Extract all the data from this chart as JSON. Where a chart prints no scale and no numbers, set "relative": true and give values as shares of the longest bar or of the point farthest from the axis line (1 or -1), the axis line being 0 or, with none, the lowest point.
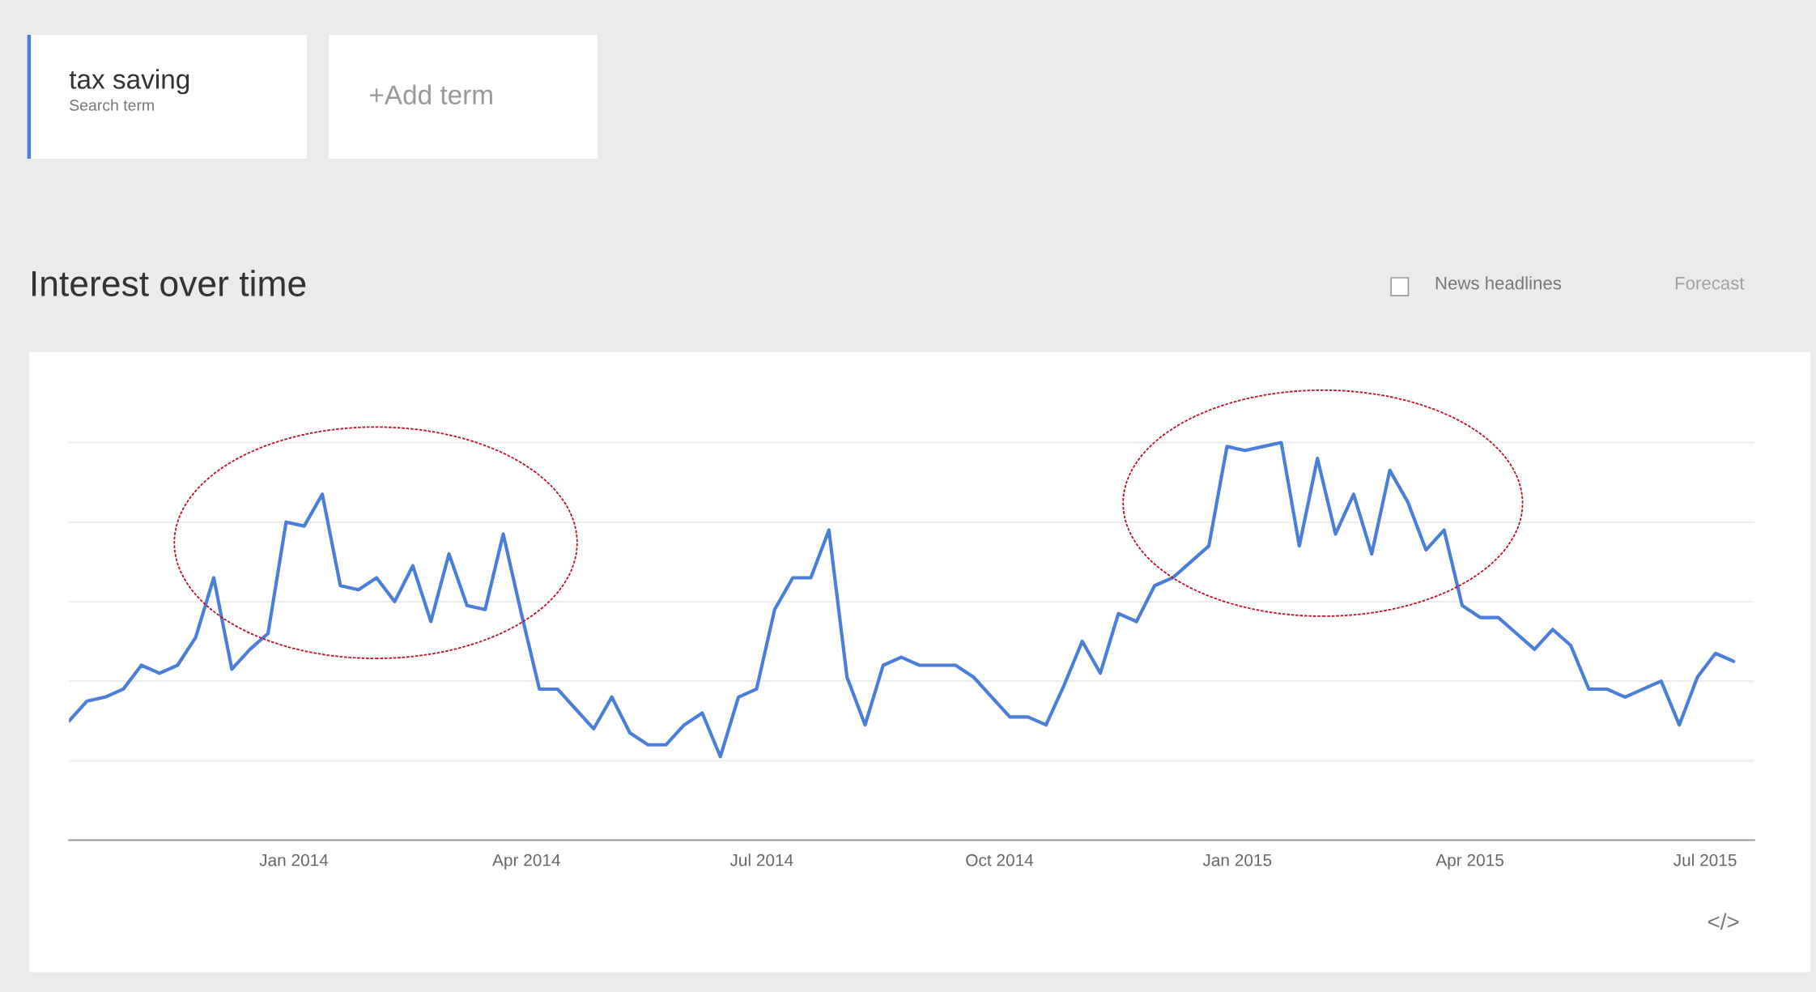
{
  "chart_data": {
    "type": "line",
    "title": "Interest over time",
    "relative": true,
    "grid": "y",
    "legend": "top left",
    "legend_title": "Search term",
    "annotations": [
      "+Add term",
      "News headlines",
      "Forecast",
      "</>"
    ],
    "xlim": [
      "2013-10-06",
      "2015-07-20"
    ],
    "xticks": [
      {
        "value": "2014-01-01",
        "label": "Jan 2014"
      },
      {
        "value": "2014-04-01",
        "label": "Apr 2014"
      },
      {
        "value": "2014-07-01",
        "label": "Jul 2014"
      },
      {
        "value": "2014-10-01",
        "label": "Oct 2014"
      },
      {
        "value": "2015-01-01",
        "label": "Jan 2015"
      },
      {
        "value": "2015-04-01",
        "label": "Apr 2015"
      },
      {
        "value": "2015-07-01",
        "label": "Jul 2015"
      }
    ],
    "x": [
      "2013-10-06",
      "2013-10-13",
      "2013-10-20",
      "2013-10-27",
      "2013-11-03",
      "2013-11-10",
      "2013-11-17",
      "2013-11-24",
      "2013-12-01",
      "2013-12-08",
      "2013-12-15",
      "2013-12-22",
      "2013-12-29",
      "2014-01-05",
      "2014-01-12",
      "2014-01-19",
      "2014-01-26",
      "2014-02-02",
      "2014-02-09",
      "2014-02-16",
      "2014-02-23",
      "2014-03-02",
      "2014-03-09",
      "2014-03-16",
      "2014-03-23",
      "2014-03-30",
      "2014-04-06",
      "2014-04-13",
      "2014-04-20",
      "2014-04-27",
      "2014-05-04",
      "2014-05-11",
      "2014-05-18",
      "2014-05-25",
      "2014-06-01",
      "2014-06-08",
      "2014-06-15",
      "2014-06-22",
      "2014-06-29",
      "2014-07-06",
      "2014-07-13",
      "2014-07-20",
      "2014-07-27",
      "2014-08-03",
      "2014-08-10",
      "2014-08-17",
      "2014-08-24",
      "2014-08-31",
      "2014-09-07",
      "2014-09-14",
      "2014-09-21",
      "2014-09-28",
      "2014-10-05",
      "2014-10-12",
      "2014-10-19",
      "2014-10-26",
      "2014-11-02",
      "2014-11-09",
      "2014-11-16",
      "2014-11-23",
      "2014-11-30",
      "2014-12-07",
      "2014-12-14",
      "2014-12-21",
      "2014-12-28",
      "2015-01-04",
      "2015-01-11",
      "2015-01-18",
      "2015-01-25",
      "2015-02-01",
      "2015-02-08",
      "2015-02-15",
      "2015-02-22",
      "2015-03-01",
      "2015-03-08",
      "2015-03-15",
      "2015-03-22",
      "2015-03-29",
      "2015-04-05",
      "2015-04-12",
      "2015-04-19",
      "2015-04-26",
      "2015-05-03",
      "2015-05-10",
      "2015-05-17",
      "2015-05-24",
      "2015-05-31",
      "2015-06-07",
      "2015-06-14",
      "2015-06-21",
      "2015-06-28",
      "2015-07-05",
      "2015-07-12"
    ],
    "series": [
      {
        "name": "tax saving",
        "color": "#4a7fd9",
        "line_style": "solid",
        "values": [
          0.3,
          0.35,
          0.36,
          0.38,
          0.44,
          0.42,
          0.44,
          0.51,
          0.66,
          0.43,
          0.48,
          0.52,
          0.8,
          0.79,
          0.87,
          0.64,
          0.63,
          0.66,
          0.6,
          0.69,
          0.55,
          0.72,
          0.59,
          0.58,
          0.77,
          0.57,
          0.38,
          0.38,
          0.33,
          0.28,
          0.36,
          0.27,
          0.24,
          0.24,
          0.29,
          0.32,
          0.21,
          0.36,
          0.38,
          0.58,
          0.66,
          0.66,
          0.78,
          0.41,
          0.29,
          0.44,
          0.46,
          0.44,
          0.44,
          0.44,
          0.41,
          0.36,
          0.31,
          0.31,
          0.29,
          0.39,
          0.5,
          0.42,
          0.57,
          0.55,
          0.64,
          0.66,
          0.7,
          0.74,
          0.99,
          0.98,
          0.99,
          1,
          0.74,
          0.96,
          0.77,
          0.87,
          0.72,
          0.93,
          0.85,
          0.73,
          0.78,
          0.59,
          0.56,
          0.56,
          0.52,
          0.48,
          0.53,
          0.49,
          0.38,
          0.38,
          0.36,
          0.38,
          0.4,
          0.29,
          0.41,
          0.47,
          0.45
        ]
      }
    ]
  }
}
